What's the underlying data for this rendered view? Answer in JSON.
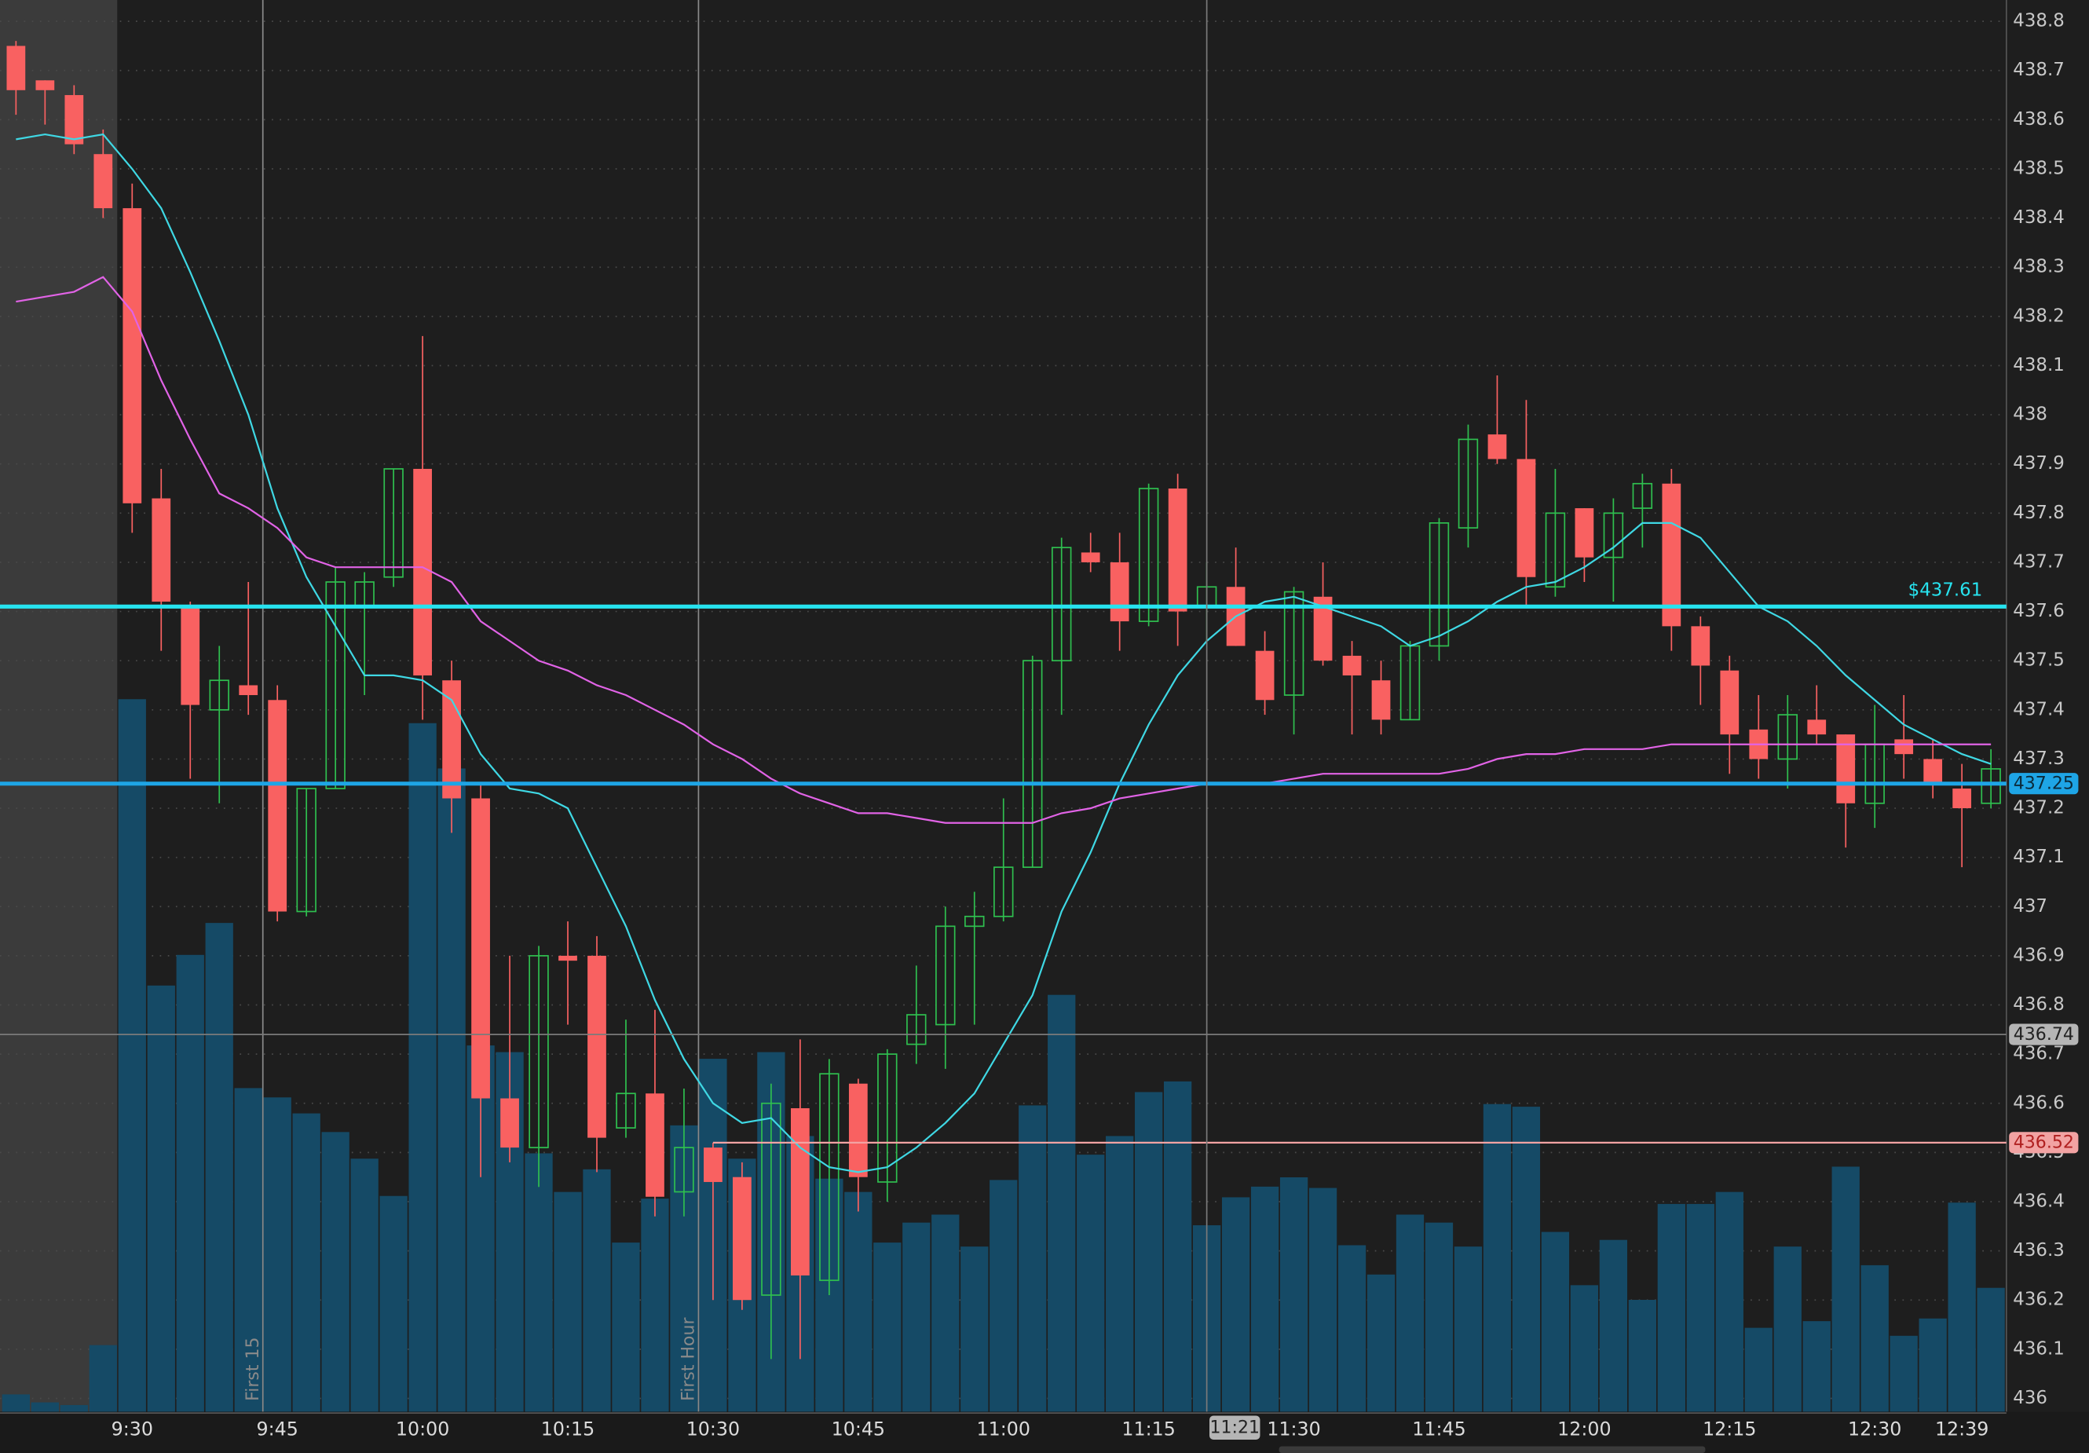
{
  "chart_data": {
    "type": "candlestick",
    "categories": [
      null,
      null,
      null,
      null,
      "9:30",
      null,
      null,
      null,
      null,
      "9:45",
      null,
      null,
      null,
      null,
      "10:00",
      null,
      null,
      null,
      null,
      "10:15",
      null,
      null,
      null,
      null,
      "10:30",
      null,
      null,
      null,
      null,
      "10:45",
      null,
      null,
      null,
      null,
      "11:00",
      null,
      null,
      null,
      null,
      "11:15",
      null,
      null,
      null,
      null,
      "11:30",
      null,
      null,
      null,
      null,
      "11:45",
      null,
      null,
      null,
      null,
      "12:00",
      null,
      null,
      null,
      null,
      "12:15",
      null,
      null,
      null,
      null,
      "12:30",
      null,
      null,
      "12:39",
      null
    ],
    "open": [
      438.75,
      438.68,
      438.65,
      438.53,
      438.42,
      437.83,
      437.61,
      437.4,
      437.45,
      437.42,
      436.99,
      437.24,
      437.61,
      437.67,
      437.89,
      437.46,
      437.22,
      436.61,
      436.51,
      436.9,
      436.9,
      436.55,
      436.62,
      436.42,
      436.51,
      436.45,
      436.21,
      436.59,
      436.24,
      436.64,
      436.44,
      436.72,
      436.76,
      436.96,
      436.98,
      437.08,
      437.5,
      437.72,
      437.7,
      437.58,
      437.85,
      437.61,
      437.65,
      437.52,
      437.43,
      437.63,
      437.51,
      437.46,
      437.38,
      437.53,
      437.77,
      437.96,
      437.91,
      437.65,
      437.81,
      437.71,
      437.81,
      437.86,
      437.57,
      437.48,
      437.36,
      437.3,
      437.38,
      437.35,
      437.21,
      437.34,
      437.3,
      437.24,
      437.21
    ],
    "high": [
      438.76,
      438.68,
      438.67,
      438.58,
      438.47,
      437.89,
      437.62,
      437.53,
      437.66,
      437.45,
      437.24,
      437.69,
      437.68,
      437.89,
      438.16,
      437.5,
      437.25,
      436.9,
      436.92,
      436.97,
      436.94,
      436.77,
      436.79,
      436.63,
      436.52,
      436.48,
      436.64,
      436.73,
      436.69,
      436.65,
      436.71,
      436.88,
      437.0,
      437.03,
      437.22,
      437.51,
      437.75,
      437.76,
      437.76,
      437.86,
      437.88,
      437.7,
      437.73,
      437.56,
      437.65,
      437.7,
      437.54,
      437.5,
      437.54,
      437.79,
      437.98,
      438.08,
      438.03,
      437.89,
      437.81,
      437.83,
      437.88,
      437.89,
      437.59,
      437.51,
      437.43,
      437.43,
      437.45,
      437.35,
      437.41,
      437.43,
      437.34,
      437.29,
      437.32
    ],
    "low": [
      438.61,
      438.59,
      438.53,
      438.4,
      437.76,
      437.52,
      437.26,
      437.21,
      437.39,
      436.97,
      436.98,
      437.24,
      437.43,
      437.65,
      437.38,
      437.15,
      436.45,
      436.48,
      436.43,
      436.76,
      436.46,
      436.53,
      436.37,
      436.37,
      436.2,
      436.18,
      436.08,
      436.08,
      436.21,
      436.38,
      436.4,
      436.68,
      436.67,
      436.76,
      436.97,
      437.08,
      437.39,
      437.68,
      437.52,
      437.57,
      437.53,
      437.54,
      437.53,
      437.39,
      437.35,
      437.49,
      437.35,
      437.35,
      437.38,
      437.5,
      437.73,
      437.9,
      437.61,
      437.63,
      437.66,
      437.62,
      437.73,
      437.52,
      437.41,
      437.27,
      437.26,
      437.24,
      437.33,
      437.12,
      437.16,
      437.26,
      437.22,
      437.08,
      437.2
    ],
    "close": [
      438.66,
      438.66,
      438.55,
      438.42,
      437.82,
      437.62,
      437.41,
      437.46,
      437.43,
      436.99,
      437.24,
      437.66,
      437.66,
      437.89,
      437.47,
      437.22,
      436.61,
      436.51,
      436.9,
      436.89,
      436.53,
      436.62,
      436.41,
      436.51,
      436.44,
      436.2,
      436.6,
      436.25,
      436.66,
      436.45,
      436.7,
      436.78,
      436.96,
      436.98,
      437.08,
      437.5,
      437.73,
      437.7,
      437.58,
      437.85,
      437.6,
      437.65,
      437.53,
      437.42,
      437.64,
      437.5,
      437.47,
      437.38,
      437.53,
      437.78,
      437.95,
      437.91,
      437.67,
      437.8,
      437.71,
      437.8,
      437.86,
      437.57,
      437.49,
      437.35,
      437.3,
      437.39,
      437.35,
      437.21,
      437.33,
      437.31,
      437.25,
      437.2,
      437.28
    ],
    "volume": [
      13,
      7,
      5,
      50,
      535,
      320,
      343,
      367,
      243,
      236,
      224,
      210,
      190,
      162,
      517,
      483,
      275,
      270,
      194,
      165,
      182,
      127,
      160,
      215,
      265,
      190,
      270,
      207,
      175,
      165,
      127,
      142,
      148,
      124,
      174,
      230,
      313,
      193,
      207,
      240,
      248,
      140,
      161,
      169,
      176,
      168,
      125,
      103,
      148,
      142,
      124,
      231,
      229,
      135,
      95,
      129,
      84,
      156,
      156,
      165,
      63,
      124,
      68,
      184,
      110,
      57,
      70,
      157,
      93
    ],
    "up_color": "#2fbf4f",
    "down_color": "#f96161",
    "volume_color": "#154a66",
    "lines": [
      {
        "color": "#3fd8e4",
        "values": [
          438.56,
          438.57,
          438.56,
          438.57,
          438.5,
          438.42,
          438.29,
          438.15,
          438.0,
          437.81,
          437.67,
          437.57,
          437.47,
          437.47,
          437.46,
          437.42,
          437.31,
          437.24,
          437.23,
          437.2,
          437.08,
          436.96,
          436.81,
          436.69,
          436.6,
          436.56,
          436.57,
          436.51,
          436.47,
          436.46,
          436.47,
          436.51,
          436.56,
          436.62,
          436.72,
          436.82,
          436.99,
          437.11,
          437.25,
          437.37,
          437.47,
          437.54,
          437.59,
          437.62,
          437.63,
          437.61,
          437.59,
          437.57,
          437.53,
          437.55,
          437.58,
          437.62,
          437.65,
          437.66,
          437.69,
          437.73,
          437.78,
          437.78,
          437.75,
          437.68,
          437.61,
          437.58,
          437.53,
          437.47,
          437.42,
          437.37,
          437.34,
          437.31,
          437.29
        ]
      },
      {
        "color": "#e163e6",
        "values": [
          438.23,
          438.24,
          438.25,
          438.28,
          438.21,
          438.07,
          437.95,
          437.84,
          437.81,
          437.77,
          437.71,
          437.69,
          437.69,
          437.69,
          437.69,
          437.66,
          437.58,
          437.54,
          437.5,
          437.48,
          437.45,
          437.43,
          437.4,
          437.37,
          437.33,
          437.3,
          437.26,
          437.23,
          437.21,
          437.19,
          437.19,
          437.18,
          437.17,
          437.17,
          437.17,
          437.17,
          437.19,
          437.2,
          437.22,
          437.23,
          437.24,
          437.25,
          437.25,
          437.25,
          437.26,
          437.27,
          437.27,
          437.27,
          437.27,
          437.27,
          437.28,
          437.3,
          437.31,
          437.31,
          437.32,
          437.32,
          437.32,
          437.33,
          437.33,
          437.33,
          437.33,
          437.33,
          437.33,
          437.33,
          437.33,
          437.33,
          437.33,
          437.33,
          437.33
        ]
      }
    ],
    "levels": [
      {
        "value": 437.61,
        "color": "#27e3ef",
        "label": "$437.61"
      },
      {
        "value": 437.25,
        "color": "#1ea5e6"
      },
      {
        "value": 436.52,
        "color": "#f2a3a3",
        "from": "10:30"
      }
    ],
    "markers": [
      {
        "x": "9:45",
        "label": "First 15"
      },
      {
        "x": "10:30",
        "label": "First Hour"
      }
    ],
    "crosshair": {
      "x": "11:21",
      "y": 436.74
    },
    "ylim": [
      436,
      438.8
    ],
    "yticks": [
      436,
      436.1,
      436.2,
      436.3,
      436.4,
      436.5,
      436.6,
      436.7,
      436.8,
      436.9,
      437,
      437.1,
      437.2,
      437.3,
      437.4,
      437.5,
      437.6,
      437.7,
      437.8,
      437.9,
      438,
      438.1,
      438.2,
      438.3,
      438.4,
      438.5,
      438.6,
      438.7,
      438.8
    ],
    "grid": true
  }
}
